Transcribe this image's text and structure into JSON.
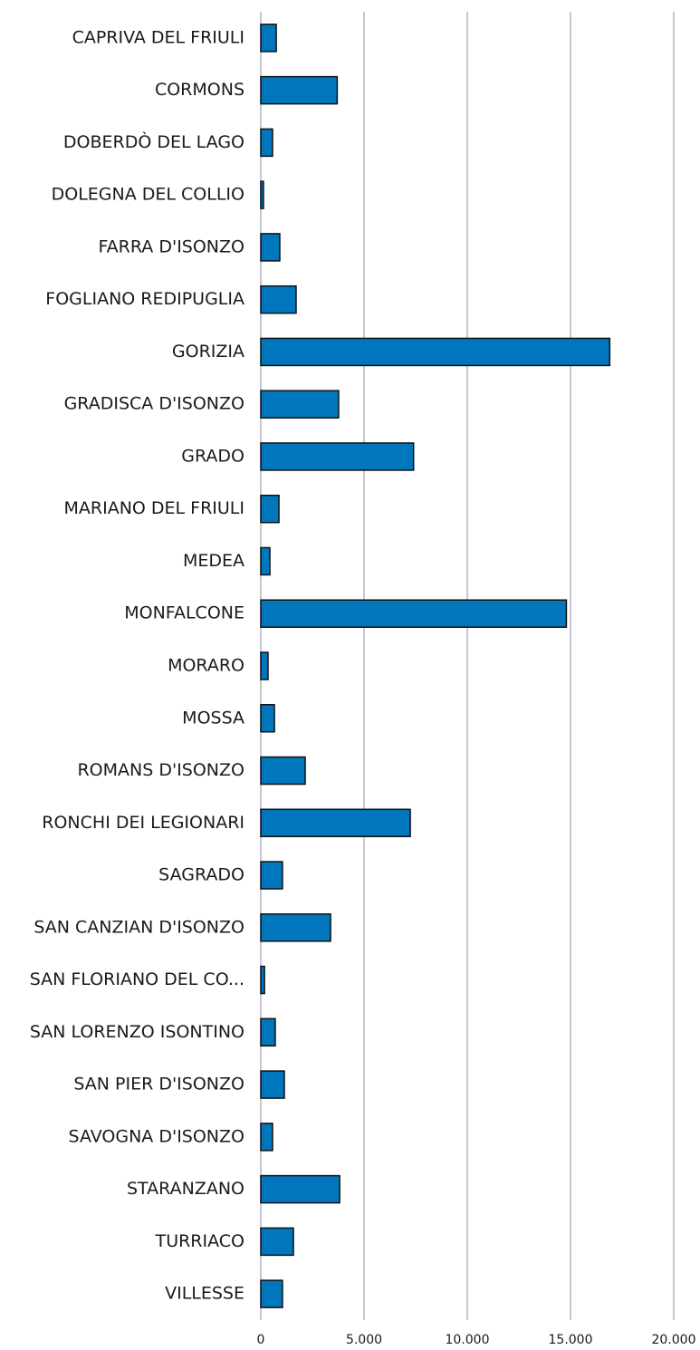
{
  "chart_data": {
    "type": "bar",
    "orientation": "horizontal",
    "categories": [
      "CAPRIVA DEL FRIULI",
      "CORMONS",
      "DOBERDÒ DEL LAGO",
      "DOLEGNA DEL COLLIO",
      "FARRA D'ISONZO",
      "FOGLIANO REDIPUGLIA",
      "GORIZIA",
      "GRADISCA D'ISONZO",
      "GRADO",
      "MARIANO DEL FRIULI",
      "MEDEA",
      "MONFALCONE",
      "MORARO",
      "MOSSA",
      "ROMANS D'ISONZO",
      "RONCHI DEI LEGIONARI",
      "SAGRADO",
      "SAN CANZIAN D'ISONZO",
      "SAN FLORIANO DEL CO...",
      "SAN LORENZO ISONTINO",
      "SAN PIER D'ISONZO",
      "SAVOGNA D'ISONZO",
      "STARANZANO",
      "TURRIACO",
      "VILLESSE"
    ],
    "values": [
      750,
      3700,
      570,
      130,
      920,
      1710,
      16900,
      3770,
      7400,
      880,
      440,
      14800,
      350,
      660,
      2150,
      7240,
      1050,
      3380,
      180,
      700,
      1140,
      570,
      3820,
      1580,
      1050
    ],
    "color": "#0077bd",
    "xlim": [
      0,
      20000
    ],
    "xticks": [
      0,
      {
        "value": 5000,
        "label": "5.000"
      },
      {
        "value": 10000,
        "label": "10.000"
      },
      {
        "value": 15000,
        "label": "15.000"
      },
      {
        "value": 20000,
        "label": "20.000"
      }
    ],
    "grid": true
  }
}
